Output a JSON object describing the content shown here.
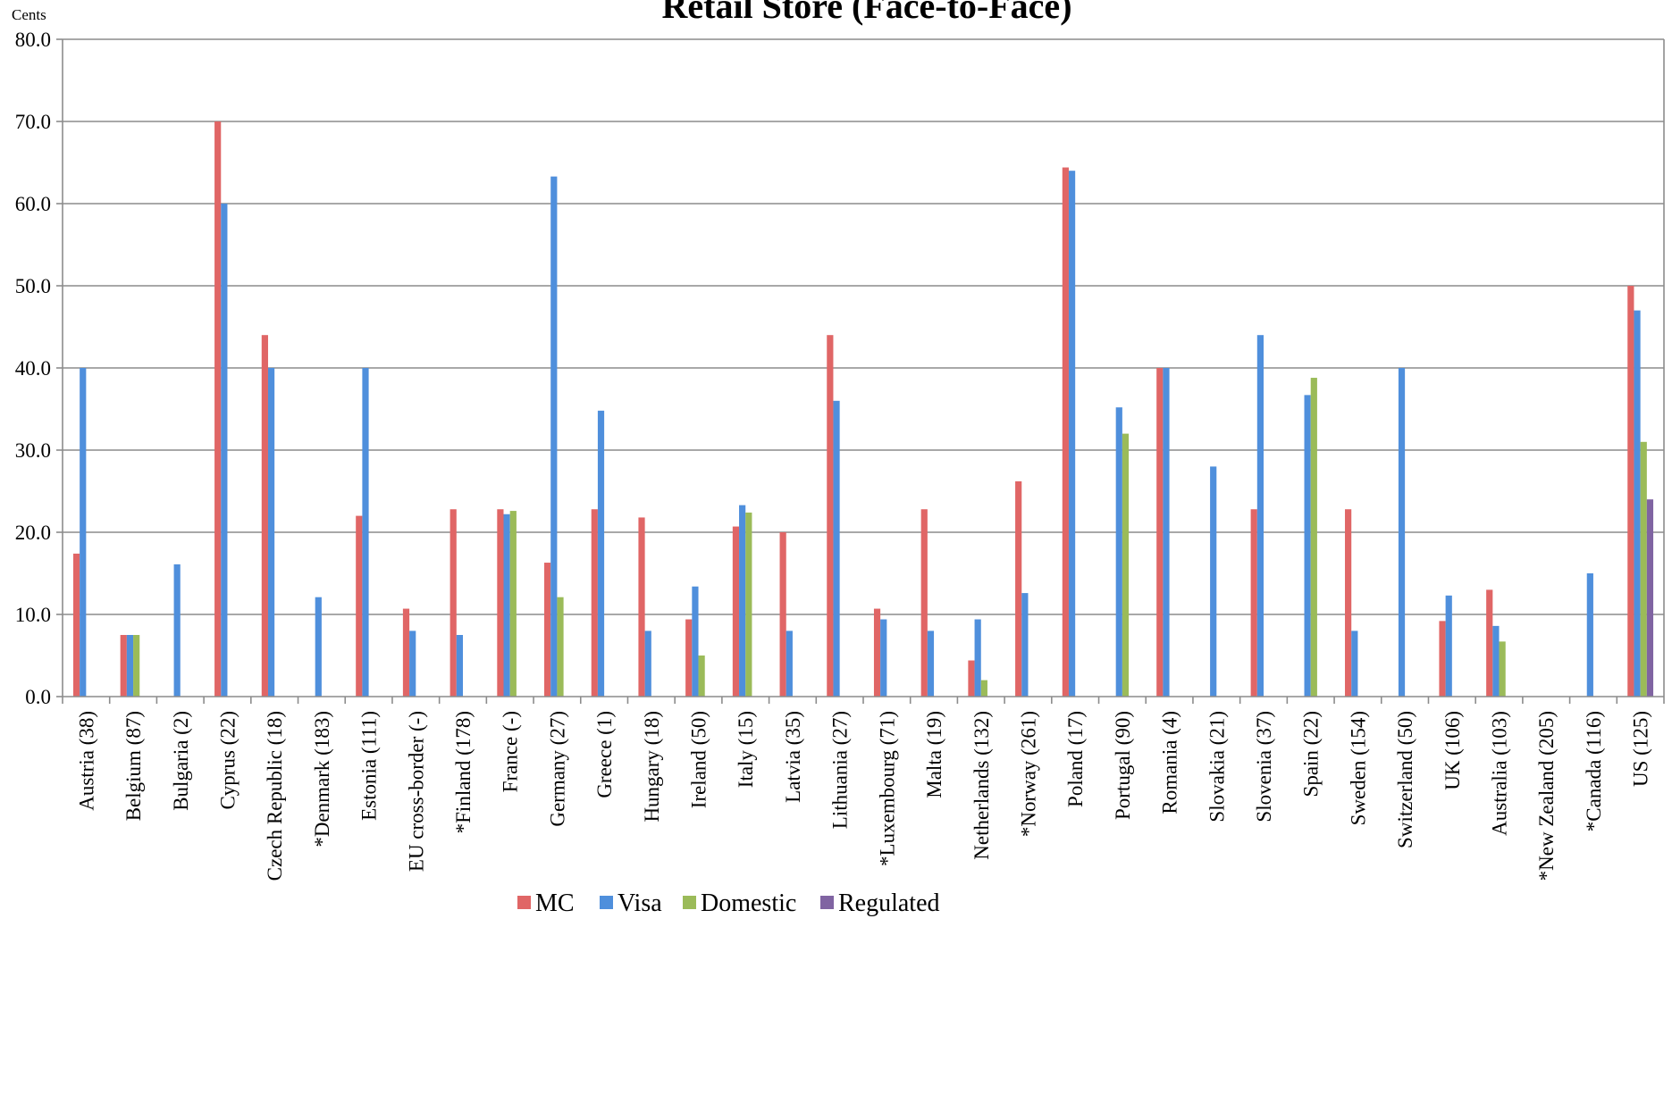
{
  "chart_data": {
    "type": "bar",
    "title": "Retail Store (Face-to-Face)",
    "ylabel": "Cents",
    "ylim": [
      0,
      80
    ],
    "yticks": [
      "0.0",
      "10.0",
      "20.0",
      "30.0",
      "40.0",
      "50.0",
      "60.0",
      "70.0",
      "80.0"
    ],
    "grid": true,
    "legend_position": "bottom",
    "categories": [
      "Austria (38)",
      "Belgium (87)",
      "Bulgaria (2)",
      "Cyprus (22)",
      "Czech Republic (18)",
      "*Denmark (183)",
      "Estonia (111)",
      "EU cross-border (-)",
      "*Finland (178)",
      "France (-)",
      "Germany (27)",
      "Greece (1)",
      "Hungary (18)",
      "Ireland (50)",
      "Italy (15)",
      "Latvia (35)",
      "Lithuania (27)",
      "*Luxembourg (71)",
      "Malta (19)",
      "Netherlands (132)",
      "*Norway (261)",
      "Poland (17)",
      "Portugal (90)",
      "Romania (4)",
      "Slovakia (21)",
      "Slovenia (37)",
      "Spain (22)",
      "Sweden (154)",
      "Switzerland (50)",
      "UK (106)",
      "Australia (103)",
      "*New Zealand (205)",
      "*Canada (116)",
      "US (125)"
    ],
    "series": [
      {
        "name": "MC",
        "color": "#e06666",
        "values": [
          17.4,
          7.5,
          null,
          70.0,
          44.0,
          null,
          22.0,
          10.7,
          22.8,
          22.8,
          16.3,
          22.8,
          21.8,
          9.4,
          20.7,
          20.0,
          44.0,
          10.7,
          22.8,
          4.4,
          26.2,
          64.4,
          null,
          40.0,
          null,
          22.8,
          null,
          22.8,
          null,
          9.2,
          13.0,
          null,
          null,
          50.0
        ]
      },
      {
        "name": "Visa",
        "color": "#4f8fdc",
        "values": [
          40.0,
          7.5,
          16.1,
          60.0,
          40.0,
          12.1,
          40.0,
          8.0,
          7.5,
          22.2,
          63.3,
          34.8,
          8.0,
          13.4,
          23.3,
          8.0,
          36.0,
          9.4,
          8.0,
          9.4,
          12.6,
          64.0,
          35.2,
          40.0,
          28.0,
          44.0,
          36.7,
          8.0,
          40.0,
          12.3,
          8.6,
          null,
          15.0,
          47.0
        ]
      },
      {
        "name": "Domestic",
        "color": "#9bbb59",
        "values": [
          null,
          7.5,
          null,
          null,
          null,
          null,
          null,
          null,
          null,
          22.6,
          12.1,
          null,
          null,
          5.0,
          22.4,
          null,
          null,
          null,
          null,
          2.0,
          null,
          null,
          32.0,
          null,
          null,
          null,
          38.8,
          null,
          null,
          null,
          6.7,
          null,
          null,
          31.0
        ]
      },
      {
        "name": "Regulated",
        "color": "#8064a2",
        "values": [
          null,
          null,
          null,
          null,
          null,
          null,
          null,
          null,
          null,
          null,
          null,
          null,
          null,
          null,
          null,
          null,
          null,
          null,
          null,
          null,
          null,
          null,
          null,
          null,
          null,
          null,
          null,
          null,
          null,
          null,
          null,
          null,
          null,
          24.0
        ]
      }
    ]
  }
}
